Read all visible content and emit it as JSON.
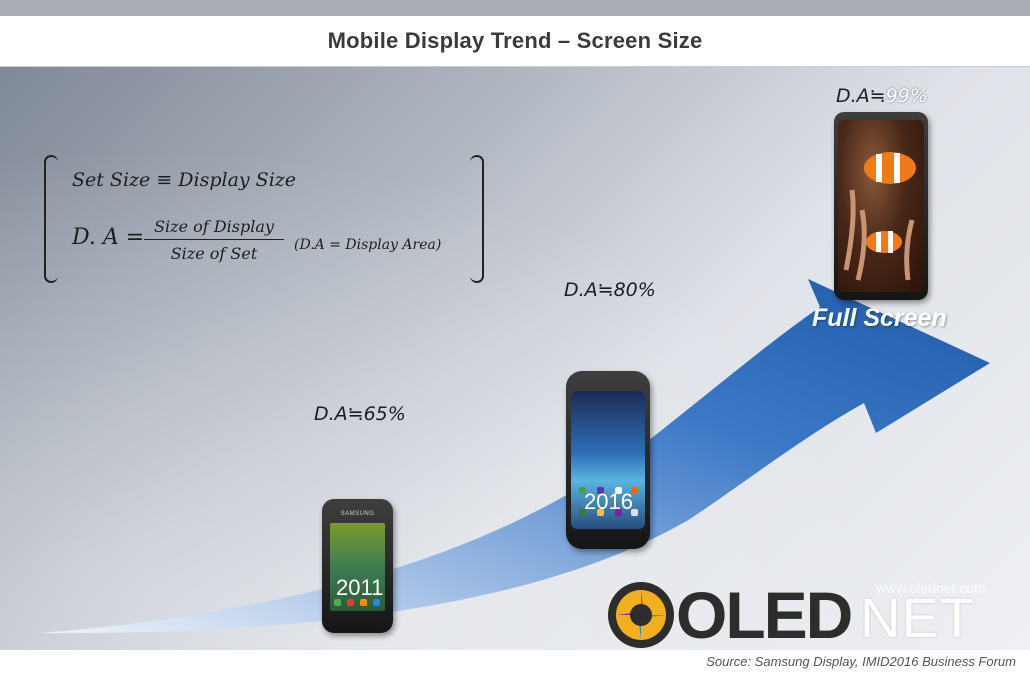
{
  "title": "Mobile Display Trend – Screen Size",
  "formula": {
    "line1": "Set Size ≡ Display Size",
    "da_symbol": "D. A =",
    "numerator": "Size of Display",
    "denominator": "Size of Set",
    "note": "(D.A = Display Area)"
  },
  "stages": [
    {
      "year": "2011",
      "da_label": "D.A≒65%"
    },
    {
      "year": "2016",
      "da_label": "D.A≒80%"
    },
    {
      "year": "",
      "da_label_prefix": "D.A≒",
      "da_label_value": "99%",
      "caption": "Full Screen"
    }
  ],
  "phone_brand": "SAMSUNG",
  "logo": {
    "oled": "OLED",
    "net": "NET",
    "url": "www.olednet.com"
  },
  "source": "Source: Samsung Display, IMID2016 Business Forum",
  "colors": {
    "arrow": "#2f6dbf",
    "arrow_light": "#dfe9f6",
    "title_text": "#3b3b3b"
  }
}
